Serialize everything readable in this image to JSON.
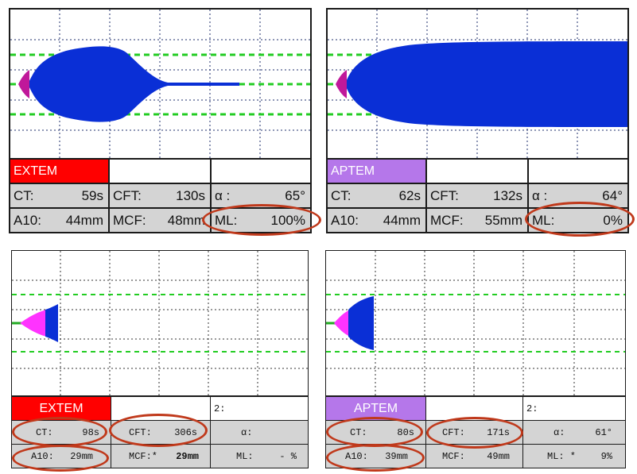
{
  "colors": {
    "tracing_blue": "#0a2fd6",
    "early_magenta": "#c0189a",
    "bright_magenta": "#ff33ff",
    "reference_green": "#22cc22",
    "extem_tag": "#ff0000",
    "aptem_tag": "#b577ea",
    "annotation_ring": "#c0391b"
  },
  "panels": [
    {
      "tag": "EXTEM",
      "row1": {
        "ct_label": "CT:",
        "ct_value": "59s",
        "cft_label": "CFT:",
        "cft_value": "130s",
        "alpha_label": "α :",
        "alpha_value": "65°"
      },
      "row2": {
        "a10_label": "A10:",
        "a10_value": "44mm",
        "mcf_label": "MCF:",
        "mcf_value": "48mm",
        "ml_label": "ML:",
        "ml_value": "100%"
      }
    },
    {
      "tag": "APTEM",
      "row1": {
        "ct_label": "CT:",
        "ct_value": "62s",
        "cft_label": "CFT:",
        "cft_value": "132s",
        "alpha_label": "α :",
        "alpha_value": "64°"
      },
      "row2": {
        "a10_label": "A10:",
        "a10_value": "44mm",
        "mcf_label": "MCF:",
        "mcf_value": "55mm",
        "ml_label": "ML:",
        "ml_value": "0%"
      }
    },
    {
      "tag": "EXTEM",
      "extra": "2:",
      "row1": {
        "ct_label": "CT:",
        "ct_value": "98s",
        "cft_label": "CFT:",
        "cft_value": "306s",
        "alpha_label": "α:",
        "alpha_value": ""
      },
      "row2": {
        "a10_label": "A10:",
        "a10_value": "29mm",
        "mcf_label": "MCF:*",
        "mcf_value": "29mm",
        "ml_label": "ML:",
        "ml_value": "- %"
      }
    },
    {
      "tag": "APTEM",
      "extra": "2:",
      "row1": {
        "ct_label": "CT:",
        "ct_value": "80s",
        "cft_label": "CFT:",
        "cft_value": "171s",
        "alpha_label": "α:",
        "alpha_value": "61°"
      },
      "row2": {
        "a10_label": "A10:",
        "a10_value": "39mm",
        "mcf_label": "MCF:",
        "mcf_value": "49mm",
        "ml_label": "ML: *",
        "ml_value": "9%"
      }
    }
  ]
}
